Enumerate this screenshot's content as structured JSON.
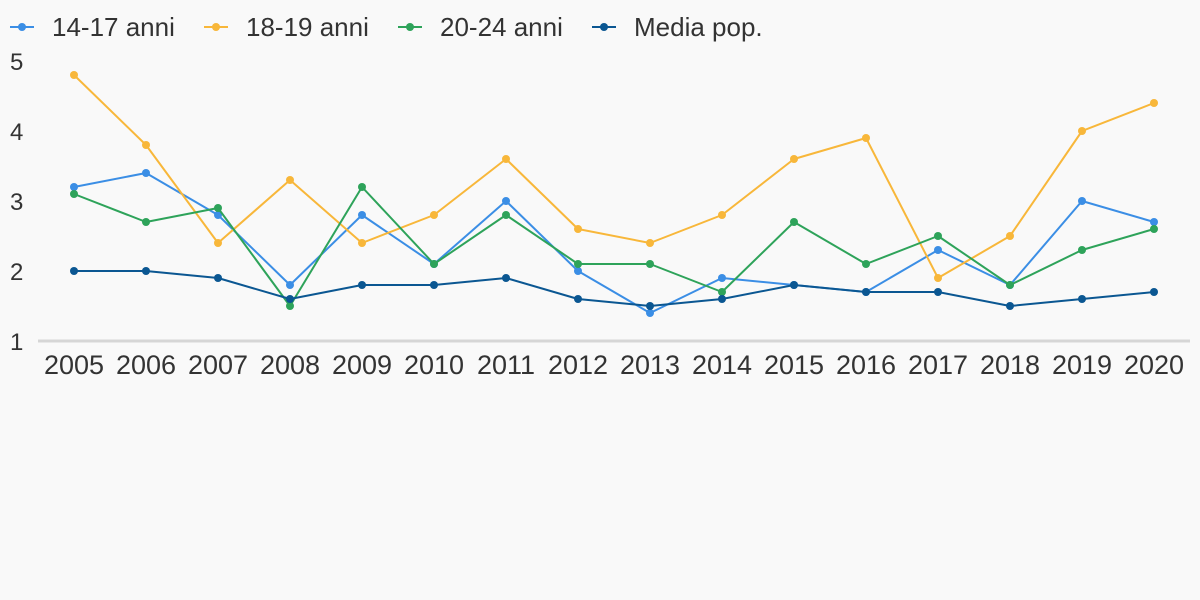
{
  "chart_data": {
    "type": "line",
    "title": "",
    "xlabel": "",
    "ylabel": "",
    "x": [
      "2005",
      "2006",
      "2007",
      "2008",
      "2009",
      "2010",
      "2011",
      "2012",
      "2013",
      "2014",
      "2015",
      "2016",
      "2017",
      "2018",
      "2019",
      "2020"
    ],
    "ylim": [
      1,
      5
    ],
    "yticks": [
      "1",
      "2",
      "3",
      "4",
      "5"
    ],
    "grid": false,
    "legend": "top-left",
    "series": [
      {
        "name": "14-17 anni",
        "color": "#3b8ee5",
        "values": [
          3.2,
          3.4,
          2.8,
          1.8,
          2.8,
          2.1,
          3.0,
          2.0,
          1.4,
          1.9,
          1.8,
          1.7,
          2.3,
          1.8,
          3.0,
          2.7
        ]
      },
      {
        "name": "18-19 anni",
        "color": "#f8b73a",
        "values": [
          4.8,
          3.8,
          2.4,
          3.3,
          2.4,
          2.8,
          3.6,
          2.6,
          2.4,
          2.8,
          3.6,
          3.9,
          1.9,
          2.5,
          4.0,
          4.4
        ]
      },
      {
        "name": "20-24 anni",
        "color": "#2ea35a",
        "values": [
          3.1,
          2.7,
          2.9,
          1.5,
          3.2,
          2.1,
          2.8,
          2.1,
          2.1,
          1.7,
          2.7,
          2.1,
          2.5,
          1.8,
          2.3,
          2.6
        ]
      },
      {
        "name": "Media pop.",
        "color": "#0b5792",
        "values": [
          2.0,
          2.0,
          1.9,
          1.6,
          1.8,
          1.8,
          1.9,
          1.6,
          1.5,
          1.6,
          1.8,
          1.7,
          1.7,
          1.5,
          1.6,
          1.7
        ]
      }
    ]
  }
}
